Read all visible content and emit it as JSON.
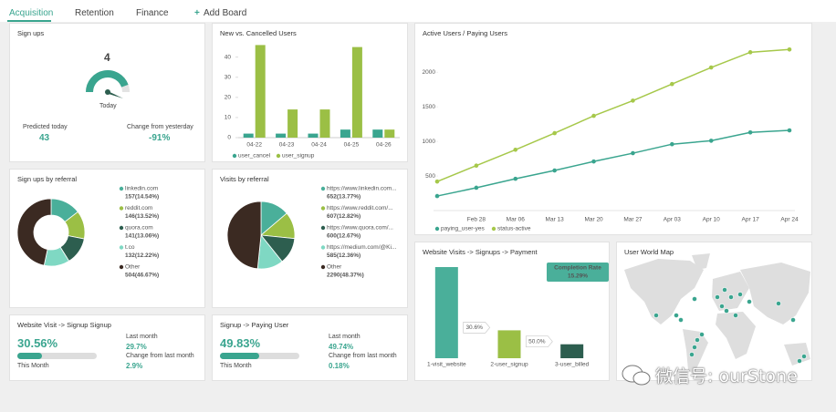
{
  "tabs": [
    "Acquisition",
    "Retention",
    "Finance"
  ],
  "add_board": {
    "icon": "+",
    "label": "Add Board"
  },
  "signups": {
    "title": "Sign ups",
    "value": "4",
    "period": "Today",
    "predicted_label": "Predicted today",
    "predicted": "43",
    "change_label": "Change from yesterday",
    "change": "-91%"
  },
  "conversions": [
    {
      "title": "Website Visit -> Signup Signup",
      "value": "30.56%",
      "period": "This Month",
      "last_label": "Last month",
      "last": "29.7%",
      "change_label": "Change from last month",
      "change": "2.9%"
    },
    {
      "title": "Signup -> Paying User",
      "value": "49.83%",
      "period": "This Month",
      "last_label": "Last month",
      "last": "49.74%",
      "change_label": "Change from last month",
      "change": "0.18%"
    }
  ],
  "map": {
    "title": "User World Map"
  },
  "watermark": "微信号: ourStone",
  "chart_data": [
    {
      "type": "bar",
      "title": "New vs. Cancelled Users",
      "categories": [
        "04-22",
        "04-23",
        "04-24",
        "04-25",
        "04-26"
      ],
      "series": [
        {
          "name": "user_cancel",
          "color": "#3aa58f",
          "values": [
            2,
            2,
            2,
            4,
            4
          ]
        },
        {
          "name": "user_signup",
          "color": "#9bbf45",
          "values": [
            46,
            14,
            14,
            45,
            4
          ]
        }
      ],
      "ylim": [
        0,
        48
      ],
      "yticks": [
        0,
        10,
        20,
        30,
        40
      ]
    },
    {
      "type": "line",
      "title": "Active Users / Paying Users",
      "categories": [
        null,
        "Feb 28",
        "Mar 06",
        "Mar 13",
        "Mar 20",
        "Mar 27",
        "Apr 03",
        "Apr 10",
        "Apr 17",
        "Apr 24"
      ],
      "series": [
        {
          "name": "paying_user-yes",
          "color": "#3aa58f",
          "values": [
            210,
            330,
            460,
            580,
            710,
            830,
            960,
            1010,
            1130,
            1160
          ]
        },
        {
          "name": "status-active",
          "color": "#a6c84a",
          "values": [
            420,
            650,
            880,
            1120,
            1370,
            1590,
            1830,
            2070,
            2290,
            2330
          ]
        }
      ],
      "ylim": [
        0,
        2400
      ],
      "yticks": [
        500,
        1000,
        1500,
        2000
      ]
    },
    {
      "type": "donut",
      "title": "Sign ups by referral",
      "categories": [
        "linkedin.com",
        "reddit.com",
        "quora.com",
        "t.co",
        "Other"
      ],
      "values": [
        157,
        146,
        141,
        132,
        504
      ],
      "value_labels": [
        "157(14.54%)",
        "146(13.52%)",
        "141(13.06%)",
        "132(12.22%)",
        "504(46.67%)"
      ],
      "colors": [
        "#4aaf9a",
        "#9bbf45",
        "#2d5e4f",
        "#7fd8c3",
        "#3b2a22"
      ]
    },
    {
      "type": "pie",
      "title": "Visits by referral",
      "categories": [
        "https://www.linkedin.com...",
        "https://www.reddit.com/...",
        "https://www.quora.com/...",
        "https://medium.com/@Ki...",
        "Other"
      ],
      "values": [
        652,
        607,
        600,
        585,
        2290
      ],
      "value_labels": [
        "652(13.77%)",
        "607(12.82%)",
        "600(12.67%)",
        "585(12.36%)",
        "2290(48.37%)"
      ],
      "colors": [
        "#4aaf9a",
        "#9bbf45",
        "#2d5e4f",
        "#7fd8c3",
        "#3b2a22"
      ]
    },
    {
      "type": "funnel",
      "title": "Website Visits -> Signups -> Payment",
      "categories": [
        "1-visit_website",
        "2-user_signup",
        "3-user_billed"
      ],
      "values": [
        100,
        30.6,
        15.3
      ],
      "colors": [
        "#4aaf9a",
        "#9bbf45",
        "#2d5e4f"
      ],
      "step_rates": [
        "30.6%",
        "50.0%"
      ],
      "completion_label": "Completion Rate",
      "completion": "15.29%"
    }
  ]
}
